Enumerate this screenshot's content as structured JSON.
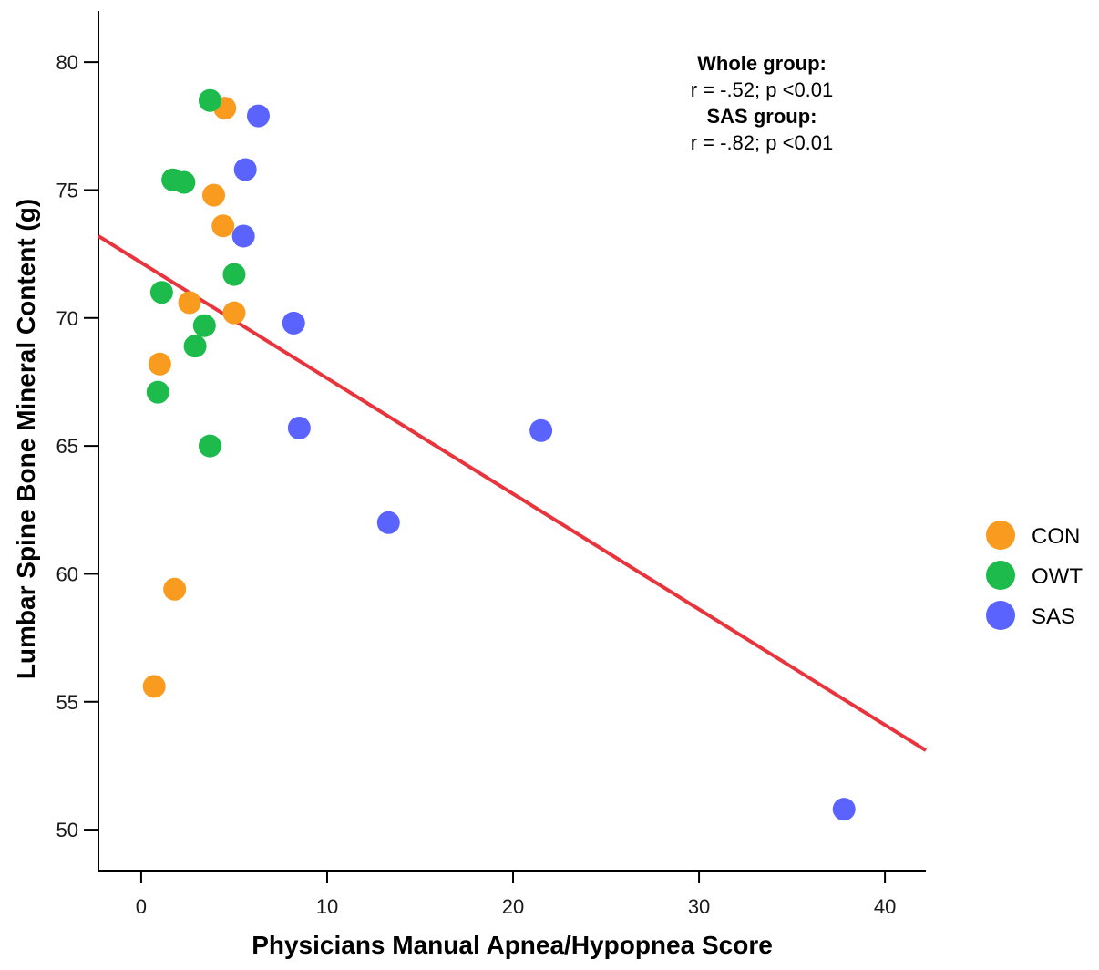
{
  "chart_data": {
    "type": "scatter",
    "title": "",
    "xlabel": "Physicians Manual Apnea/Hypopnea Score",
    "ylabel": "Lumbar Spine Bone Mineral Content (g)",
    "xlim": [
      -2.3,
      42.2
    ],
    "ylim": [
      48.4,
      82
    ],
    "x_ticks": [
      0,
      10,
      20,
      30,
      40
    ],
    "x_tick_labels": [
      "0",
      "10",
      "20",
      "30",
      "40"
    ],
    "y_ticks": [
      50,
      55,
      60,
      65,
      70,
      75,
      80
    ],
    "y_tick_labels": [
      "50",
      "55",
      "60",
      "65",
      "70",
      "75",
      "80"
    ],
    "grid": false,
    "legend_position": "right",
    "series": [
      {
        "name": "CON",
        "color": "#F99B1E",
        "points": [
          [
            4.5,
            78.2
          ],
          [
            3.9,
            74.8
          ],
          [
            4.4,
            73.6
          ],
          [
            2.6,
            70.6
          ],
          [
            5.0,
            70.2
          ],
          [
            1.0,
            68.2
          ],
          [
            1.8,
            59.4
          ],
          [
            0.7,
            55.6
          ]
        ]
      },
      {
        "name": "OWT",
        "color": "#1DBB4B",
        "points": [
          [
            3.7,
            78.5
          ],
          [
            1.7,
            75.4
          ],
          [
            2.3,
            75.3
          ],
          [
            5.0,
            71.7
          ],
          [
            1.1,
            71.0
          ],
          [
            3.4,
            69.7
          ],
          [
            2.9,
            68.9
          ],
          [
            0.9,
            67.1
          ],
          [
            3.7,
            65.0
          ]
        ]
      },
      {
        "name": "SAS",
        "color": "#5B63FF",
        "points": [
          [
            6.3,
            77.9
          ],
          [
            5.6,
            75.8
          ],
          [
            5.5,
            73.2
          ],
          [
            8.2,
            69.8
          ],
          [
            8.5,
            65.7
          ],
          [
            21.5,
            65.6
          ],
          [
            13.3,
            62.0
          ],
          [
            37.8,
            50.8
          ]
        ]
      }
    ],
    "trend_line": {
      "color": "#E8343C",
      "x": [
        -2.3,
        42.2
      ],
      "y": [
        73.2,
        53.1
      ]
    },
    "annotations": [
      {
        "text": "Whole group:",
        "bold": true
      },
      {
        "text": "r = -.52; p <0.01",
        "bold": false
      },
      {
        "text": "SAS group:",
        "bold": true
      },
      {
        "text": "r = -.82; p <0.01",
        "bold": false
      }
    ]
  }
}
